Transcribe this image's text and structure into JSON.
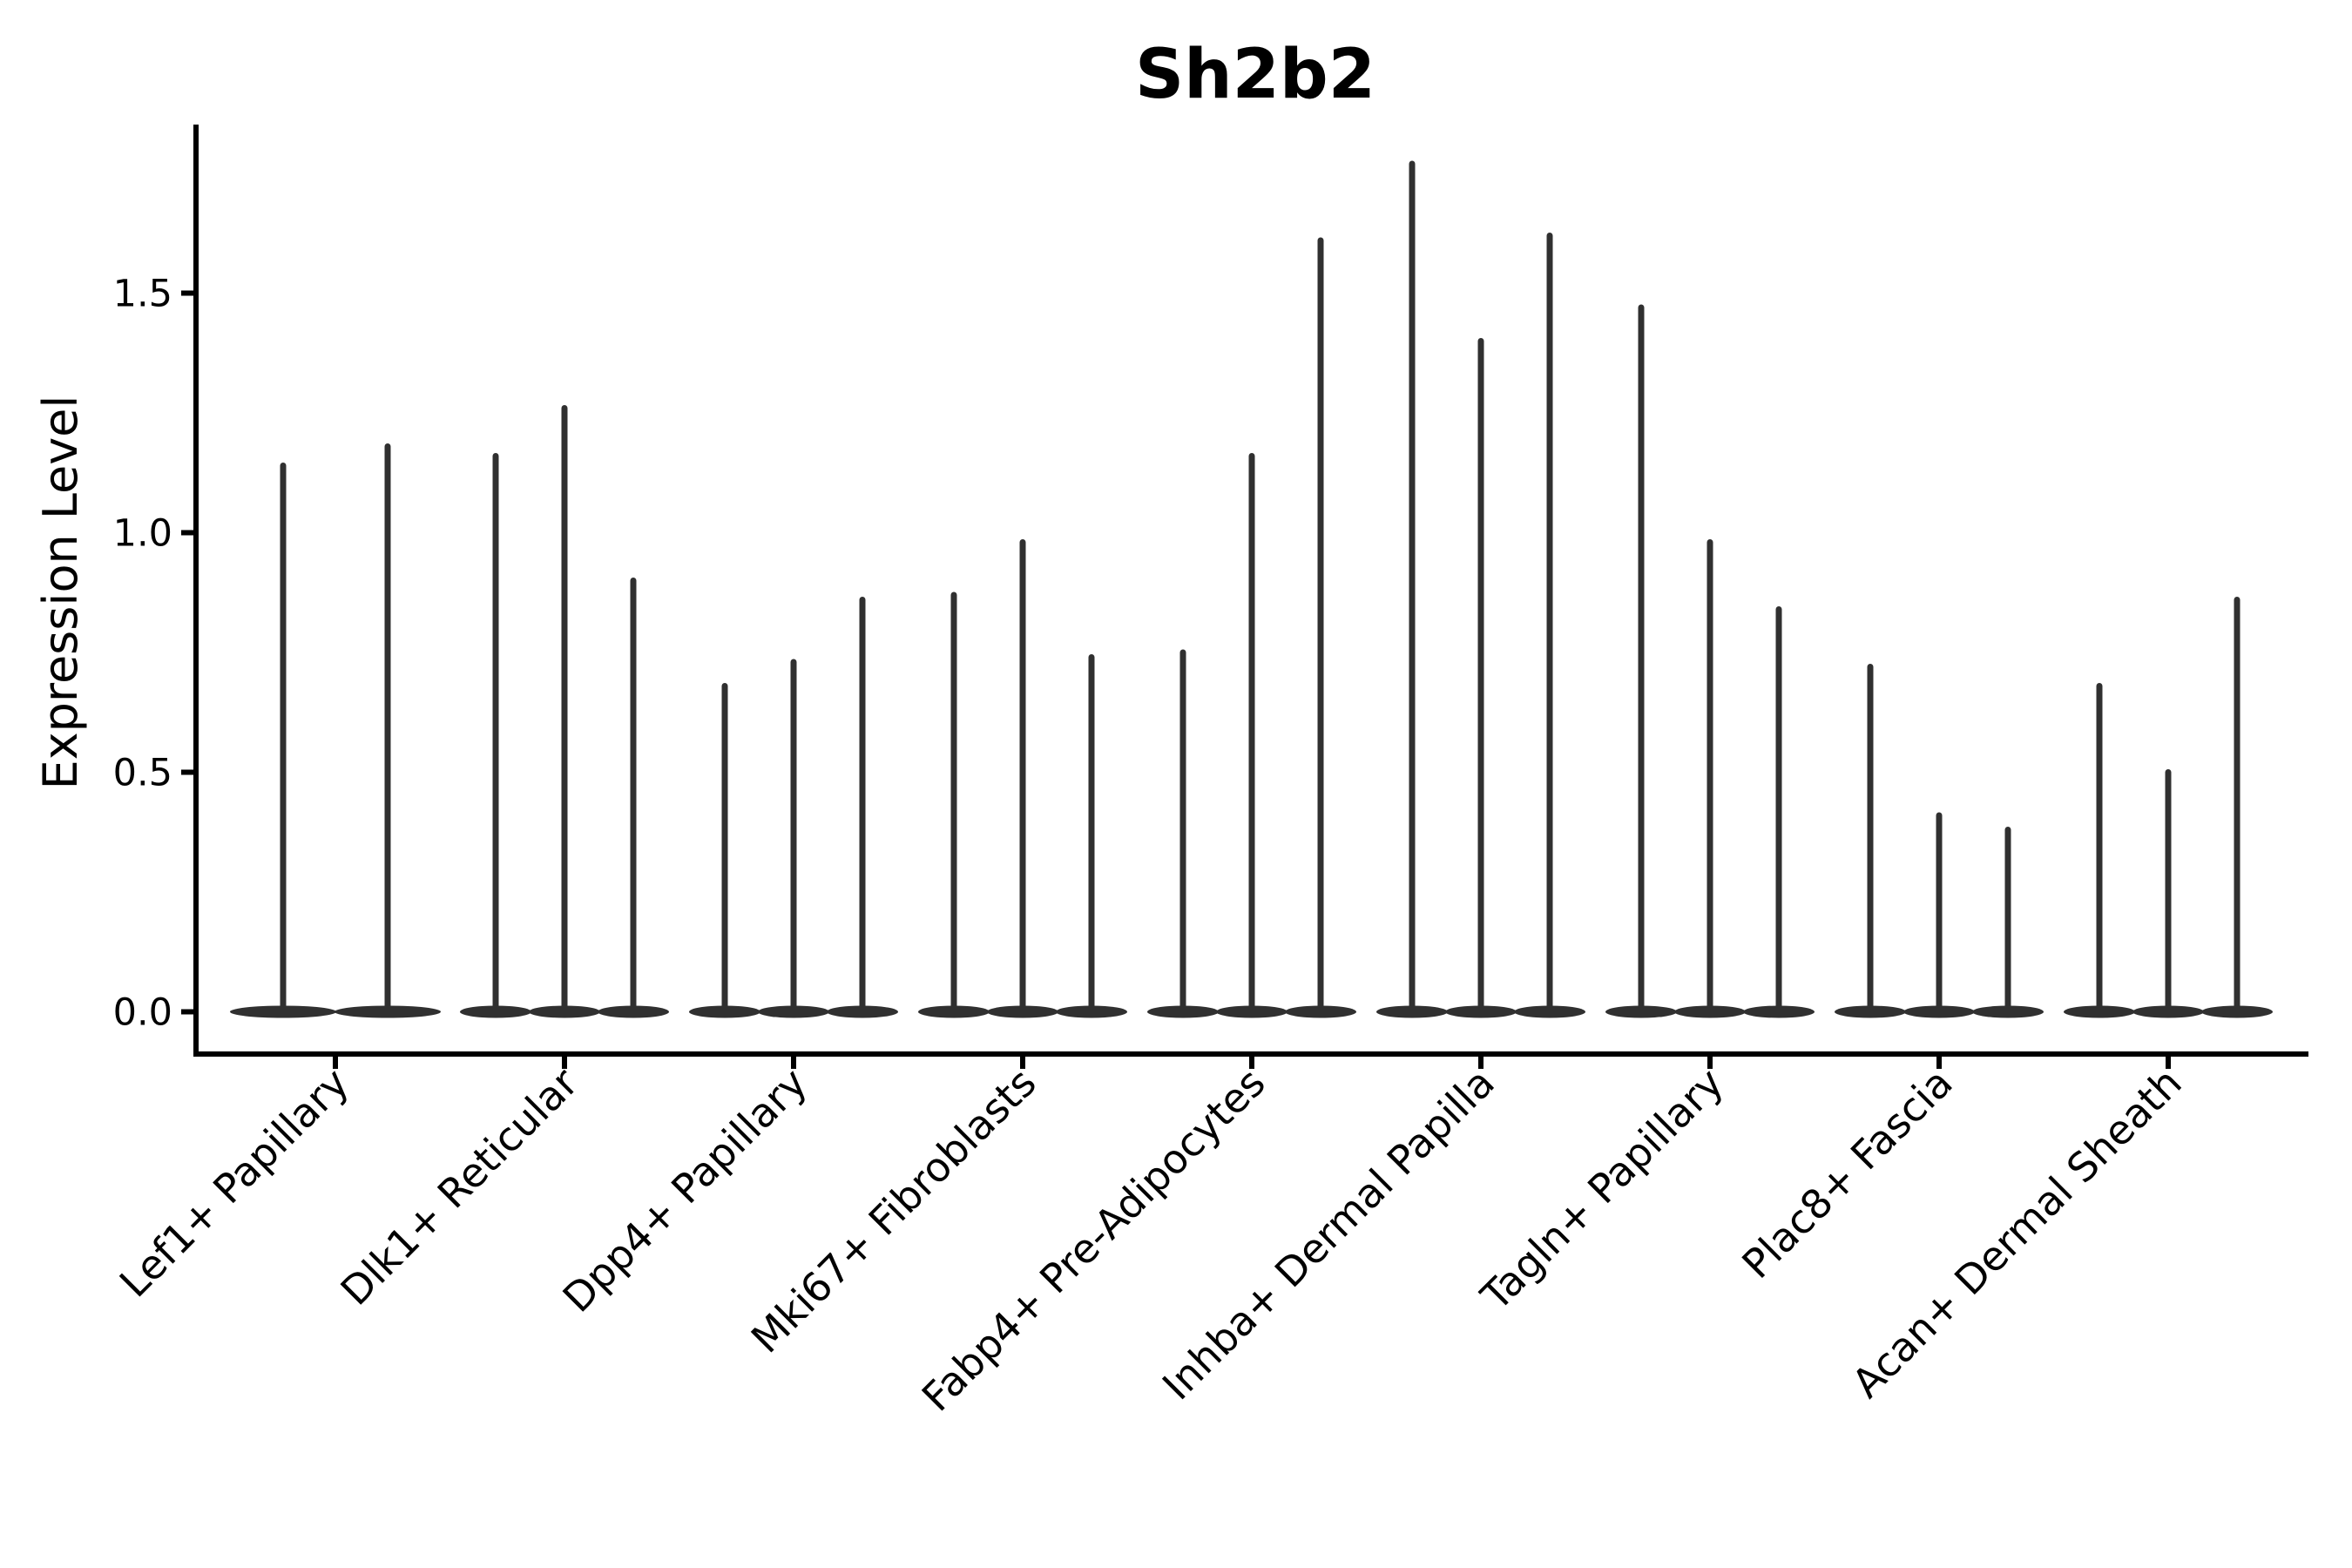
{
  "title": "Sh2b2",
  "ylabel": "Expression Level",
  "colors": {
    "violin": "#303030",
    "axis": "#000000",
    "text": "#000000",
    "background": "#ffffff"
  },
  "chart_data": {
    "type": "violin",
    "title": "Sh2b2",
    "xlabel": "",
    "ylabel": "Expression Level",
    "ylim": [
      -0.09,
      1.85
    ],
    "grid": false,
    "legend_position": "none",
    "ytick_values": [
      0.0,
      0.5,
      1.0,
      1.5
    ],
    "ytick_labels": [
      "0.0",
      "0.5",
      "1.0",
      "1.5"
    ],
    "categories": [
      "Lef1+ Papillary",
      "Dlk1+ Reticular",
      "Dpp4+ Papillary",
      "Mki67+ Fibroblasts",
      "Fabp4+ Pre-Adipocytes",
      "Inhba+ Dermal Papilla",
      "Tagln+ Papillary",
      "Plac8+ Fascia",
      "Acan+ Dermal Sheath"
    ],
    "series": [
      {
        "category": "Lef1+ Papillary",
        "violin_max_expression": [
          1.14,
          1.18
        ]
      },
      {
        "category": "Dlk1+ Reticular",
        "violin_max_expression": [
          1.16,
          1.26,
          0.9
        ]
      },
      {
        "category": "Dpp4+ Papillary",
        "violin_max_expression": [
          0.68,
          0.73,
          0.86
        ]
      },
      {
        "category": "Mki67+ Fibroblasts",
        "violin_max_expression": [
          0.87,
          0.98,
          0.74
        ]
      },
      {
        "category": "Fabp4+ Pre-Adipocytes",
        "violin_max_expression": [
          0.75,
          1.16,
          1.61
        ]
      },
      {
        "category": "Inhba+ Dermal Papilla",
        "violin_max_expression": [
          1.77,
          1.4,
          1.62
        ]
      },
      {
        "category": "Tagln+ Papillary",
        "violin_max_expression": [
          1.47,
          0.98,
          0.84
        ]
      },
      {
        "category": "Plac8+ Fascia",
        "violin_max_expression": [
          0.72,
          0.41,
          0.38
        ]
      },
      {
        "category": "Acan+ Dermal Sheath",
        "violin_max_expression": [
          0.68,
          0.5,
          0.86
        ]
      }
    ],
    "violin_shape_note": "Each violin is massed at expression 0 (flat wide base) with a thin vertical spike reaching the maximum expression value."
  }
}
